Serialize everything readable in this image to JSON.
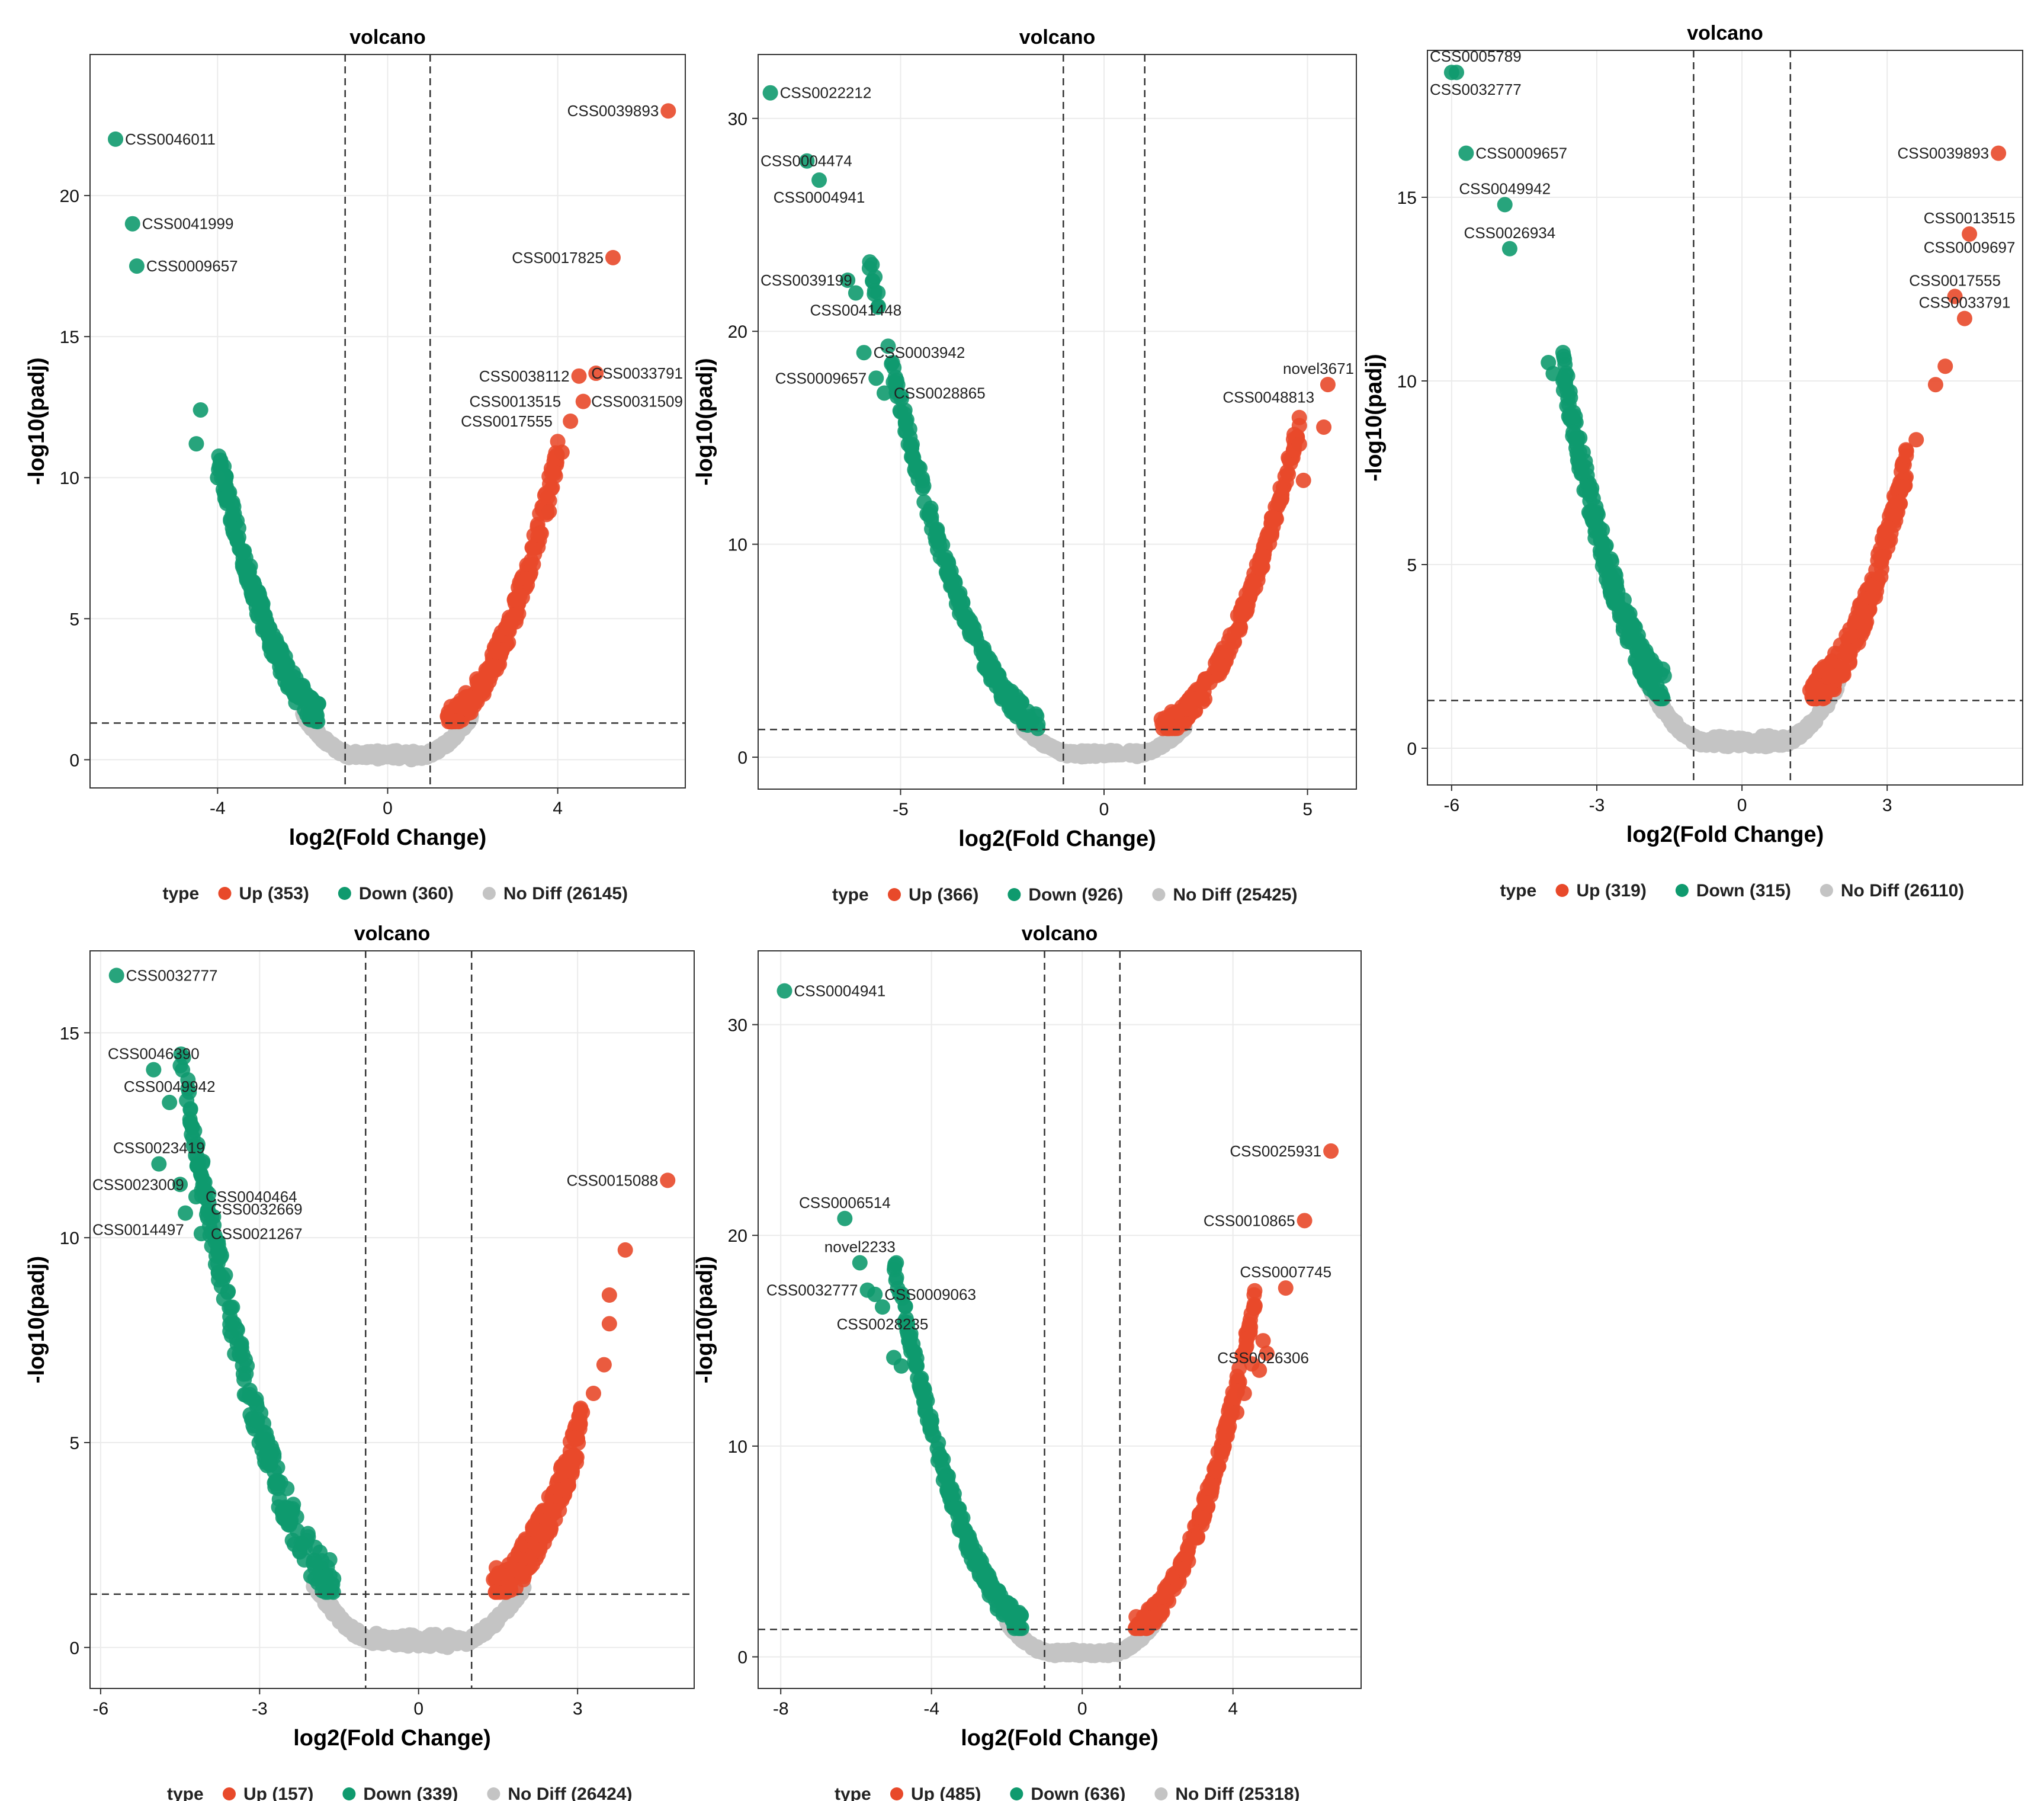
{
  "colors": {
    "up": "#e8492a",
    "down": "#0f9a6e",
    "nodiff": "#c4c4c4",
    "grid": "#ebebeb"
  },
  "chart_data": [
    {
      "type": "scatter",
      "title": "volcano",
      "xlabel": "log2(Fold Change)",
      "ylabel": "-log10(padj)",
      "xlim": [
        -7,
        7
      ],
      "ylim": [
        -1,
        25
      ],
      "xticks": [
        -4,
        0,
        4
      ],
      "yticks": [
        0,
        5,
        10,
        15,
        20
      ],
      "vlines": [
        -1,
        1
      ],
      "hline": 1.3,
      "legend": {
        "title": "type",
        "entries": [
          "Up (353)",
          "Down (360)",
          "No Diff (26145)"
        ]
      },
      "series": [
        {
          "name": "Up",
          "sig_range": [
            1.4,
            4.0
          ],
          "curve_a": 0.55,
          "points": [
            [
              5.3,
              17.8
            ],
            [
              4.5,
              13.6
            ],
            [
              4.9,
              13.7
            ],
            [
              4.6,
              12.7
            ],
            [
              4.3,
              12.0
            ],
            [
              4.1,
              10.9
            ],
            [
              3.8,
              8.8
            ],
            [
              6.6,
              23.0
            ]
          ]
        },
        {
          "name": "Down",
          "sig_range": [
            -4.0,
            -1.6
          ],
          "curve_a": 0.55,
          "points": [
            [
              -6.4,
              22.0
            ],
            [
              -6.0,
              19.0
            ],
            [
              -5.9,
              17.5
            ],
            [
              -4.4,
              12.4
            ],
            [
              -4.5,
              11.2
            ],
            [
              -4.0,
              10.0
            ]
          ]
        }
      ],
      "labels": [
        {
          "text": "CSS0039893",
          "x": 6.6,
          "y": 23.0,
          "side": "left"
        },
        {
          "text": "CSS0046011",
          "x": -6.4,
          "y": 22.0,
          "side": "right"
        },
        {
          "text": "CSS0041999",
          "x": -6.0,
          "y": 19.0,
          "side": "right"
        },
        {
          "text": "CSS0017825",
          "x": 5.3,
          "y": 17.8,
          "side": "left"
        },
        {
          "text": "CSS0009657",
          "x": -5.9,
          "y": 17.5,
          "side": "right"
        },
        {
          "text": "CSS0038112",
          "x": 4.5,
          "y": 13.6,
          "side": "left"
        },
        {
          "text": "CSS0033791",
          "x": 4.9,
          "y": 13.7,
          "side": "right"
        },
        {
          "text": "CSS0013515",
          "x": 4.3,
          "y": 12.7,
          "side": "left"
        },
        {
          "text": "CSS0031509",
          "x": 4.6,
          "y": 12.7,
          "side": "right"
        },
        {
          "text": "CSS0017555",
          "x": 4.1,
          "y": 12.0,
          "side": "left"
        }
      ]
    },
    {
      "type": "scatter",
      "title": "volcano",
      "xlabel": "log2(Fold Change)",
      "ylabel": "-log10(padj)",
      "xlim": [
        -8.5,
        6.2
      ],
      "ylim": [
        -1.5,
        33
      ],
      "xticks": [
        -5,
        0,
        5
      ],
      "yticks": [
        0,
        10,
        20,
        30
      ],
      "vlines": [
        -1,
        1
      ],
      "hline": 1.3,
      "legend": {
        "title": "type",
        "entries": [
          "Up (366)",
          "Down (926)",
          "No Diff (25425)"
        ]
      },
      "series": [
        {
          "name": "Up",
          "sig_range": [
            1.4,
            4.8
          ],
          "curve_a": 0.5,
          "points": [
            [
              5.5,
              17.5
            ],
            [
              5.4,
              15.5
            ],
            [
              4.8,
              14.7
            ],
            [
              4.9,
              13.0
            ],
            [
              4.5,
              13.4
            ],
            [
              4.3,
              11.9
            ]
          ]
        },
        {
          "name": "Down",
          "sig_range": [
            -5.8,
            -1.6
          ],
          "curve_a": 0.48,
          "points": [
            [
              -8.2,
              31.2
            ],
            [
              -7.3,
              28.0
            ],
            [
              -7.0,
              27.1
            ],
            [
              -6.3,
              22.4
            ],
            [
              -6.1,
              21.8
            ],
            [
              -5.9,
              19.0
            ],
            [
              -5.6,
              17.8
            ],
            [
              -5.4,
              17.1
            ]
          ]
        }
      ],
      "labels": [
        {
          "text": "CSS0022212",
          "x": -8.2,
          "y": 31.2,
          "side": "right"
        },
        {
          "text": "CSS0004474",
          "x": -7.3,
          "y": 28.0,
          "side": "left"
        },
        {
          "text": "CSS0004941",
          "x": -7.0,
          "y": 27.1,
          "side": "below"
        },
        {
          "text": "CSS0039199",
          "x": -6.3,
          "y": 22.4,
          "side": "left"
        },
        {
          "text": "CSS0041448",
          "x": -6.1,
          "y": 21.8,
          "side": "below"
        },
        {
          "text": "CSS0003942",
          "x": -5.9,
          "y": 19.0,
          "side": "right"
        },
        {
          "text": "CSS0009657",
          "x": -5.6,
          "y": 17.8,
          "side": "left"
        },
        {
          "text": "CSS0028865",
          "x": -5.4,
          "y": 17.1,
          "side": "right"
        },
        {
          "text": "novel3671",
          "x": 5.5,
          "y": 17.5,
          "side": "above"
        },
        {
          "text": "CSS0048813",
          "x": 5.4,
          "y": 16.9,
          "side": "left"
        }
      ]
    },
    {
      "type": "scatter",
      "title": "volcano",
      "xlabel": "log2(Fold Change)",
      "ylabel": "-log10(padj)",
      "xlim": [
        -6.5,
        5.8
      ],
      "ylim": [
        -1,
        19
      ],
      "xticks": [
        -6,
        -3,
        0,
        3
      ],
      "yticks": [
        0,
        5,
        10,
        15
      ],
      "vlines": [
        -1,
        1
      ],
      "hline": 1.3,
      "legend": {
        "title": "type",
        "entries": [
          "Up (319)",
          "Down (315)",
          "No Diff (26110)"
        ]
      },
      "series": [
        {
          "name": "Up",
          "sig_range": [
            1.4,
            3.4
          ],
          "curve_a": 0.6,
          "points": [
            [
              5.3,
              16.2
            ],
            [
              4.7,
              14.0
            ],
            [
              4.4,
              12.3
            ],
            [
              4.6,
              11.7
            ],
            [
              4.2,
              10.4
            ],
            [
              4.0,
              9.9
            ],
            [
              3.6,
              8.4
            ]
          ]
        },
        {
          "name": "Down",
          "sig_range": [
            -3.7,
            -1.6
          ],
          "curve_a": 0.65,
          "points": [
            [
              -6.0,
              18.4
            ],
            [
              -5.9,
              18.4
            ],
            [
              -5.7,
              16.2
            ],
            [
              -4.9,
              14.8
            ],
            [
              -4.8,
              13.6
            ],
            [
              -4.0,
              10.5
            ],
            [
              -3.9,
              10.2
            ]
          ]
        }
      ],
      "labels": [
        {
          "text": "CSS0005789",
          "x": -6.0,
          "y": 18.4,
          "side": "above"
        },
        {
          "text": "CSS0032777",
          "x": -5.9,
          "y": 18.4,
          "side": "below"
        },
        {
          "text": "CSS0009657",
          "x": -5.7,
          "y": 16.2,
          "side": "right"
        },
        {
          "text": "CSS0049942",
          "x": -4.9,
          "y": 14.8,
          "side": "above"
        },
        {
          "text": "CSS0026934",
          "x": -4.8,
          "y": 13.6,
          "side": "above"
        },
        {
          "text": "CSS0039893",
          "x": 5.3,
          "y": 16.2,
          "side": "left"
        },
        {
          "text": "CSS0013515",
          "x": 4.7,
          "y": 14.0,
          "side": "above"
        },
        {
          "text": "CSS0009697",
          "x": 4.7,
          "y": 13.2,
          "side": "above"
        },
        {
          "text": "CSS0017555",
          "x": 4.4,
          "y": 12.3,
          "side": "above"
        },
        {
          "text": "CSS0033791",
          "x": 4.6,
          "y": 11.7,
          "side": "above"
        }
      ]
    },
    {
      "type": "scatter",
      "title": "volcano",
      "xlabel": "log2(Fold Change)",
      "ylabel": "-log10(padj)",
      "xlim": [
        -6.2,
        5.2
      ],
      "ylim": [
        -1,
        17
      ],
      "xticks": [
        -6,
        -3,
        0,
        3
      ],
      "yticks": [
        0,
        5,
        10,
        15
      ],
      "vlines": [
        -1,
        1
      ],
      "hline": 1.3,
      "legend": {
        "title": "type",
        "entries": [
          "Up (157)",
          "Down (339)",
          "No Diff (26424)"
        ]
      },
      "series": [
        {
          "name": "Up",
          "sig_range": [
            1.4,
            3.1
          ],
          "curve_a": 0.52,
          "points": [
            [
              4.7,
              11.4
            ],
            [
              3.9,
              9.7
            ],
            [
              3.6,
              8.6
            ],
            [
              3.6,
              7.9
            ],
            [
              3.5,
              6.9
            ],
            [
              3.3,
              6.2
            ]
          ]
        },
        {
          "name": "Down",
          "sig_range": [
            -4.5,
            -1.6
          ],
          "curve_a": 0.55,
          "points": [
            [
              -5.7,
              16.4
            ],
            [
              -5.0,
              14.1
            ],
            [
              -4.7,
              13.3
            ],
            [
              -4.9,
              11.8
            ],
            [
              -4.5,
              11.3
            ],
            [
              -4.2,
              11.0
            ],
            [
              -4.4,
              10.6
            ],
            [
              -4.1,
              10.1
            ]
          ]
        }
      ],
      "labels": [
        {
          "text": "CSS0032777",
          "x": -5.7,
          "y": 16.4,
          "side": "right"
        },
        {
          "text": "CSS0046390",
          "x": -5.0,
          "y": 14.1,
          "side": "above"
        },
        {
          "text": "CSS0049942",
          "x": -4.7,
          "y": 13.3,
          "side": "above"
        },
        {
          "text": "CSS0023419",
          "x": -4.9,
          "y": 11.8,
          "side": "above"
        },
        {
          "text": "CSS0023009",
          "x": -4.5,
          "y": 11.3,
          "side": "left"
        },
        {
          "text": "CSS0040464",
          "x": -4.2,
          "y": 11.0,
          "side": "right"
        },
        {
          "text": "CSS0032669",
          "x": -4.1,
          "y": 10.7,
          "side": "right"
        },
        {
          "text": "CSS0014497",
          "x": -4.4,
          "y": 10.2,
          "side": "left"
        },
        {
          "text": "CSS0021267",
          "x": -4.1,
          "y": 10.1,
          "side": "right"
        },
        {
          "text": "CSS0015088",
          "x": 4.7,
          "y": 11.4,
          "side": "left"
        }
      ]
    },
    {
      "type": "scatter",
      "title": "volcano",
      "xlabel": "log2(Fold Change)",
      "ylabel": "-log10(padj)",
      "xlim": [
        -8.6,
        7.4
      ],
      "ylim": [
        -1.5,
        33.5
      ],
      "xticks": [
        -8,
        -4,
        0,
        4
      ],
      "yticks": [
        0,
        10,
        20,
        30
      ],
      "vlines": [
        -1,
        1
      ],
      "hline": 1.3,
      "legend": {
        "title": "type",
        "entries": [
          "Up (485)",
          "Down (636)",
          "No Diff (25318)"
        ]
      },
      "series": [
        {
          "name": "Up",
          "sig_range": [
            1.4,
            4.6
          ],
          "curve_a": 0.62,
          "points": [
            [
              6.6,
              24.0
            ],
            [
              5.9,
              20.7
            ],
            [
              5.4,
              17.5
            ],
            [
              4.8,
              15.0
            ],
            [
              4.9,
              14.4
            ],
            [
              4.5,
              13.9
            ],
            [
              4.7,
              13.6
            ],
            [
              4.3,
              12.5
            ],
            [
              4.1,
              11.6
            ]
          ]
        },
        {
          "name": "Down",
          "sig_range": [
            -5.0,
            -1.6
          ],
          "curve_a": 0.55,
          "points": [
            [
              -7.9,
              31.6
            ],
            [
              -6.3,
              20.8
            ],
            [
              -5.9,
              18.7
            ],
            [
              -5.7,
              17.4
            ],
            [
              -5.5,
              17.2
            ],
            [
              -5.3,
              16.6
            ],
            [
              -5.0,
              14.2
            ],
            [
              -4.8,
              13.8
            ]
          ]
        }
      ],
      "labels": [
        {
          "text": "CSS0004941",
          "x": -7.9,
          "y": 31.6,
          "side": "right"
        },
        {
          "text": "CSS0006514",
          "x": -6.3,
          "y": 20.8,
          "side": "above"
        },
        {
          "text": "novel2233",
          "x": -5.9,
          "y": 18.7,
          "side": "above"
        },
        {
          "text": "CSS0032777",
          "x": -5.7,
          "y": 17.4,
          "side": "left"
        },
        {
          "text": "CSS0009063",
          "x": -5.5,
          "y": 17.2,
          "side": "right"
        },
        {
          "text": "CSS0028235",
          "x": -5.3,
          "y": 16.6,
          "side": "below"
        },
        {
          "text": "CSS0025931",
          "x": 6.6,
          "y": 24.0,
          "side": "left"
        },
        {
          "text": "CSS0010865",
          "x": 5.9,
          "y": 20.7,
          "side": "left"
        },
        {
          "text": "CSS0007745",
          "x": 5.4,
          "y": 17.5,
          "side": "above"
        },
        {
          "text": "CSS0026306",
          "x": 4.8,
          "y": 15.0,
          "side": "below"
        }
      ]
    }
  ]
}
